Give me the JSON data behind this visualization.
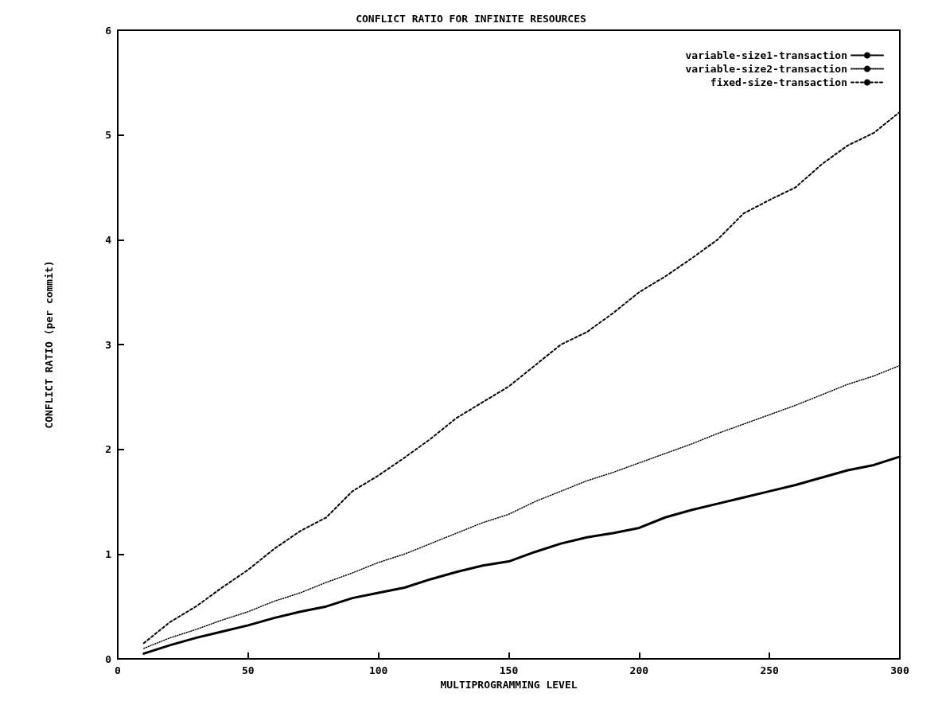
{
  "chart_data": {
    "type": "line",
    "title": "CONFLICT RATIO FOR INFINITE RESOURCES",
    "xlabel": "MULTIPROGRAMMING LEVEL",
    "ylabel": "CONFLICT RATIO (per commit)",
    "x": [
      10,
      20,
      30,
      40,
      50,
      60,
      70,
      80,
      90,
      100,
      110,
      120,
      130,
      140,
      150,
      160,
      170,
      180,
      190,
      200,
      210,
      220,
      230,
      240,
      250,
      260,
      270,
      280,
      290,
      300
    ],
    "series": [
      {
        "name": "variable-size1-transaction",
        "color": "#000000",
        "line_style": "solid",
        "values": [
          0.05,
          0.13,
          0.2,
          0.26,
          0.32,
          0.39,
          0.45,
          0.5,
          0.58,
          0.63,
          0.68,
          0.76,
          0.83,
          0.89,
          0.93,
          1.02,
          1.1,
          1.16,
          1.2,
          1.25,
          1.35,
          1.42,
          1.48,
          1.54,
          1.6,
          1.66,
          1.73,
          1.8,
          1.85,
          1.93
        ]
      },
      {
        "name": "variable-size2-transaction",
        "color": "#000000",
        "line_style": "dotted",
        "values": [
          0.1,
          0.2,
          0.28,
          0.37,
          0.45,
          0.55,
          0.63,
          0.73,
          0.82,
          0.92,
          1.0,
          1.1,
          1.2,
          1.3,
          1.38,
          1.5,
          1.6,
          1.7,
          1.78,
          1.87,
          1.96,
          2.05,
          2.15,
          2.24,
          2.33,
          2.42,
          2.52,
          2.62,
          2.7,
          2.8
        ]
      },
      {
        "name": "fixed-size-transaction",
        "color": "#000000",
        "line_style": "dashed",
        "values": [
          0.15,
          0.35,
          0.5,
          0.68,
          0.85,
          1.05,
          1.22,
          1.35,
          1.6,
          1.75,
          1.92,
          2.1,
          2.3,
          2.45,
          2.6,
          2.8,
          3.0,
          3.12,
          3.3,
          3.5,
          3.65,
          3.82,
          4.0,
          4.25,
          4.38,
          4.5,
          4.72,
          4.9,
          5.02,
          5.22
        ]
      }
    ],
    "xlim": [
      0,
      300
    ],
    "xticks": [
      0,
      50,
      100,
      150,
      200,
      250,
      300
    ],
    "ylim": [
      0,
      6
    ],
    "yticks": [
      0,
      1,
      2,
      3,
      4,
      5,
      6
    ],
    "grid": false,
    "legend": "top right",
    "marker": "none"
  }
}
